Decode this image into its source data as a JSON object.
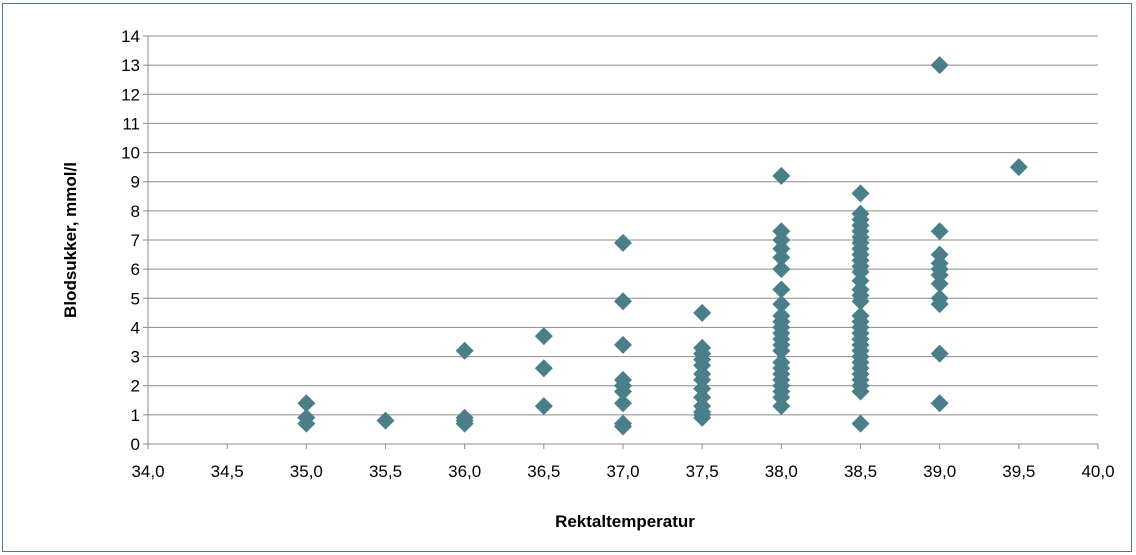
{
  "chart_data": {
    "type": "scatter",
    "title": "",
    "xlabel": "Rektaltemperatur",
    "ylabel": "Blodsukker, mmol/l",
    "xlim": [
      34.0,
      40.0
    ],
    "ylim": [
      0,
      14
    ],
    "x_ticks": [
      "34,0",
      "34,5",
      "35,0",
      "35,5",
      "36,0",
      "36,5",
      "37,0",
      "37,5",
      "38,0",
      "38,5",
      "39,0",
      "39,5",
      "40,0"
    ],
    "y_ticks": [
      "0",
      "1",
      "2",
      "3",
      "4",
      "5",
      "6",
      "7",
      "8",
      "9",
      "10",
      "11",
      "12",
      "13",
      "14"
    ],
    "grid": "horizontal",
    "legend": "none",
    "marker": "diamond",
    "marker_color": "#4a7f8a",
    "series": [
      {
        "points": [
          [
            35.0,
            1.4
          ],
          [
            35.0,
            0.9
          ],
          [
            35.0,
            0.7
          ],
          [
            35.5,
            0.8
          ],
          [
            36.0,
            3.2
          ],
          [
            36.0,
            0.9
          ],
          [
            36.0,
            0.8
          ],
          [
            36.0,
            0.7
          ],
          [
            36.5,
            3.7
          ],
          [
            36.5,
            2.6
          ],
          [
            36.5,
            1.3
          ],
          [
            37.0,
            6.9
          ],
          [
            37.0,
            4.9
          ],
          [
            37.0,
            3.4
          ],
          [
            37.0,
            2.2
          ],
          [
            37.0,
            2.0
          ],
          [
            37.0,
            1.8
          ],
          [
            37.0,
            1.4
          ],
          [
            37.0,
            0.7
          ],
          [
            37.0,
            0.6
          ],
          [
            37.5,
            4.5
          ],
          [
            37.5,
            3.3
          ],
          [
            37.5,
            3.1
          ],
          [
            37.5,
            2.9
          ],
          [
            37.5,
            2.7
          ],
          [
            37.5,
            2.4
          ],
          [
            37.5,
            2.2
          ],
          [
            37.5,
            1.9
          ],
          [
            37.5,
            1.6
          ],
          [
            37.5,
            1.3
          ],
          [
            37.5,
            1.1
          ],
          [
            37.5,
            1.0
          ],
          [
            37.5,
            0.9
          ],
          [
            38.0,
            9.2
          ],
          [
            38.0,
            7.3
          ],
          [
            38.0,
            7.0
          ],
          [
            38.0,
            6.7
          ],
          [
            38.0,
            6.4
          ],
          [
            38.0,
            6.0
          ],
          [
            38.0,
            5.3
          ],
          [
            38.0,
            4.8
          ],
          [
            38.0,
            4.4
          ],
          [
            38.0,
            4.2
          ],
          [
            38.0,
            4.0
          ],
          [
            38.0,
            3.8
          ],
          [
            38.0,
            3.6
          ],
          [
            38.0,
            3.4
          ],
          [
            38.0,
            3.2
          ],
          [
            38.0,
            2.8
          ],
          [
            38.0,
            2.6
          ],
          [
            38.0,
            2.4
          ],
          [
            38.0,
            2.2
          ],
          [
            38.0,
            2.0
          ],
          [
            38.0,
            1.8
          ],
          [
            38.0,
            1.6
          ],
          [
            38.0,
            1.3
          ],
          [
            38.5,
            8.6
          ],
          [
            38.5,
            7.9
          ],
          [
            38.5,
            7.7
          ],
          [
            38.5,
            7.5
          ],
          [
            38.5,
            7.3
          ],
          [
            38.5,
            7.1
          ],
          [
            38.5,
            6.9
          ],
          [
            38.5,
            6.7
          ],
          [
            38.5,
            6.5
          ],
          [
            38.5,
            6.3
          ],
          [
            38.5,
            6.1
          ],
          [
            38.5,
            5.9
          ],
          [
            38.5,
            5.6
          ],
          [
            38.5,
            5.3
          ],
          [
            38.5,
            5.1
          ],
          [
            38.5,
            4.9
          ],
          [
            38.5,
            4.4
          ],
          [
            38.5,
            4.2
          ],
          [
            38.5,
            4.0
          ],
          [
            38.5,
            3.8
          ],
          [
            38.5,
            3.6
          ],
          [
            38.5,
            3.4
          ],
          [
            38.5,
            3.2
          ],
          [
            38.5,
            3.0
          ],
          [
            38.5,
            2.8
          ],
          [
            38.5,
            2.6
          ],
          [
            38.5,
            2.4
          ],
          [
            38.5,
            2.2
          ],
          [
            38.5,
            2.0
          ],
          [
            38.5,
            1.8
          ],
          [
            38.5,
            0.7
          ],
          [
            39.0,
            13.0
          ],
          [
            39.0,
            7.3
          ],
          [
            39.0,
            6.5
          ],
          [
            39.0,
            6.2
          ],
          [
            39.0,
            6.0
          ],
          [
            39.0,
            5.8
          ],
          [
            39.0,
            5.5
          ],
          [
            39.0,
            5.0
          ],
          [
            39.0,
            4.8
          ],
          [
            39.0,
            3.1
          ],
          [
            39.0,
            1.4
          ],
          [
            39.5,
            9.5
          ]
        ]
      }
    ]
  }
}
